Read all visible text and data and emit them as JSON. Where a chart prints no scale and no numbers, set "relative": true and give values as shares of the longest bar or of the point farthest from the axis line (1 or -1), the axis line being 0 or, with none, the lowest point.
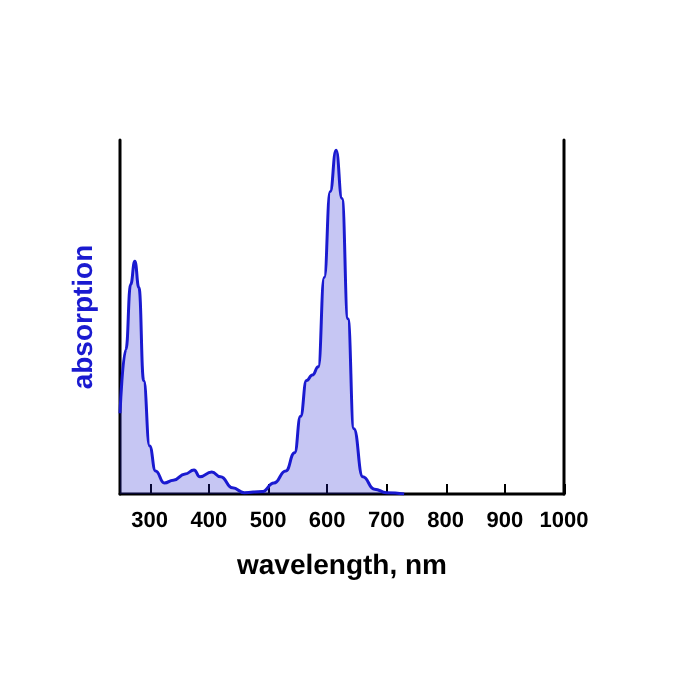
{
  "chart_data": {
    "type": "area",
    "xlabel": "wavelength, nm",
    "ylabel": "absorption",
    "relative": true,
    "xlim": [
      250,
      1000
    ],
    "xticks": [
      300,
      400,
      500,
      600,
      700,
      800,
      900,
      1000
    ],
    "grid": false,
    "marker": "none",
    "line_style": "solid",
    "x": [
      250,
      260,
      268,
      275,
      282,
      290,
      300,
      310,
      325,
      340,
      360,
      375,
      385,
      405,
      420,
      440,
      460,
      490,
      510,
      530,
      545,
      555,
      565,
      575,
      585,
      595,
      605,
      615,
      625,
      635,
      645,
      660,
      680,
      700,
      730
    ],
    "series": [
      {
        "color": "#1a1ad0",
        "values": [
          0.235,
          0.42,
          0.61,
          0.677,
          0.6,
          0.33,
          0.14,
          0.067,
          0.032,
          0.04,
          0.058,
          0.07,
          0.05,
          0.064,
          0.05,
          0.018,
          0.004,
          0.007,
          0.032,
          0.067,
          0.12,
          0.226,
          0.33,
          0.346,
          0.37,
          0.63,
          0.88,
          1,
          0.86,
          0.51,
          0.19,
          0.05,
          0.014,
          0.004,
          0
        ]
      }
    ]
  }
}
